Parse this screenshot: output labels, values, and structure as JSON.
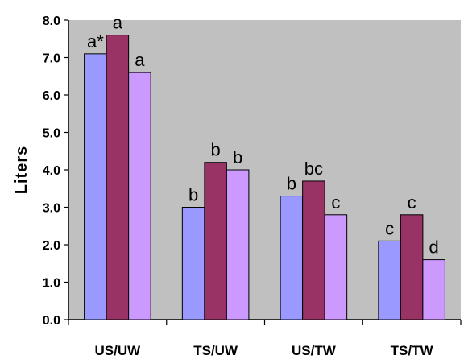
{
  "chart_data": {
    "type": "bar",
    "ylabel": "Liters",
    "xlabel": "",
    "ylim": [
      0,
      8
    ],
    "yticks": [
      "0.0",
      "1.0",
      "2.0",
      "3.0",
      "4.0",
      "5.0",
      "6.0",
      "7.0",
      "8.0"
    ],
    "grid": false,
    "background": "#c0c0c0",
    "categories": [
      "US/UW",
      "TS/UW",
      "US/TW",
      "TS/TW"
    ],
    "series": [
      {
        "values": [
          7.1,
          3.0,
          3.3,
          2.1
        ],
        "color": "#9999ff",
        "labels": [
          "a*",
          "b",
          "b",
          "c"
        ]
      },
      {
        "values": [
          7.6,
          4.2,
          3.7,
          2.8
        ],
        "color": "#993366",
        "labels": [
          "a",
          "b",
          "bc",
          "c"
        ]
      },
      {
        "values": [
          6.6,
          4.0,
          2.8,
          1.6
        ],
        "color": "#cc99ff",
        "labels": [
          "a",
          "b",
          "c",
          "d"
        ]
      }
    ]
  }
}
